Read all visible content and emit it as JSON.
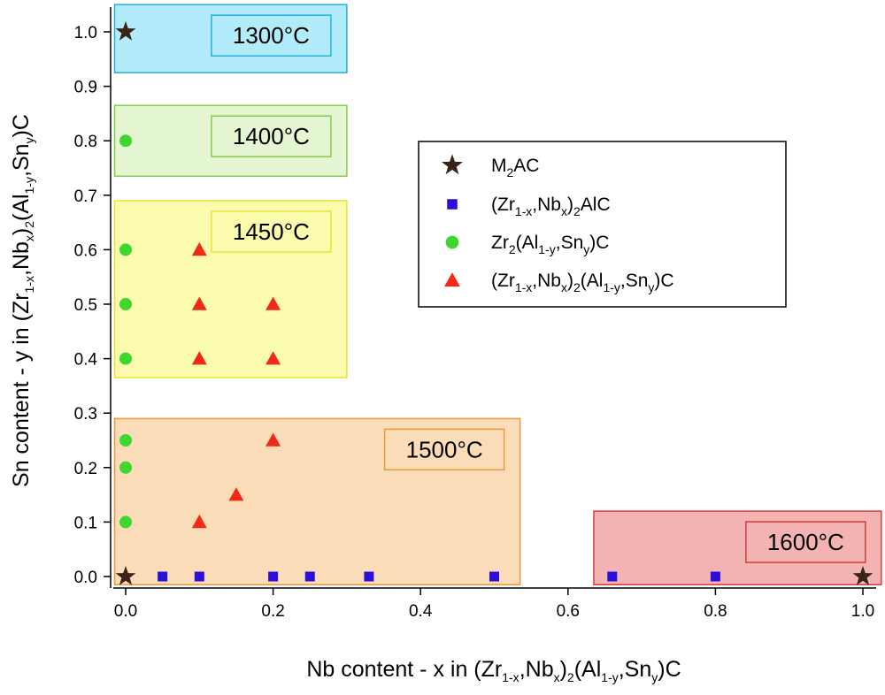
{
  "chart_data": {
    "type": "scatter",
    "xlabel": "Nb content - x in (Zr1-x,Nbx)2(Al1-y,Sny)C",
    "ylabel": "Sn content - y in (Zr1-x,Nbx)2(Al1-y,Sny)C",
    "xlim": [
      -0.02,
      1.02
    ],
    "ylim": [
      -0.02,
      1.04
    ],
    "xticks": [
      "0.0",
      "0.2",
      "0.4",
      "0.6",
      "0.8",
      "1.0"
    ],
    "yticks": [
      "0.0",
      "0.1",
      "0.2",
      "0.3",
      "0.4",
      "0.5",
      "0.6",
      "0.7",
      "0.8",
      "0.9",
      "1.0"
    ],
    "grid": false,
    "legend_position": "right",
    "regions": [
      {
        "label": "1300°C",
        "x": [
          -0.015,
          0.3
        ],
        "y": [
          0.925,
          1.05
        ],
        "color": "#b2ebf9",
        "border": "#2aaed9"
      },
      {
        "label": "1400°C",
        "x": [
          -0.015,
          0.3
        ],
        "y": [
          0.735,
          0.865
        ],
        "color": "#e5f7d2",
        "border": "#86cb4e"
      },
      {
        "label": "1450°C",
        "x": [
          -0.015,
          0.3
        ],
        "y": [
          0.365,
          0.69
        ],
        "color": "#fafbac",
        "border": "#e7e33a"
      },
      {
        "label": "1500°C",
        "x": [
          -0.015,
          0.535
        ],
        "y": [
          -0.015,
          0.29
        ],
        "color": "#fbdcb8",
        "border": "#e99a3e"
      },
      {
        "label": "1600°C",
        "x": [
          0.635,
          1.025
        ],
        "y": [
          -0.015,
          0.12
        ],
        "color": "#f3b3b3",
        "border": "#d33d3d"
      }
    ],
    "series": [
      {
        "name": "M2AC",
        "marker": "star",
        "color": "#3a2418",
        "points": [
          [
            0,
            1.0
          ],
          [
            0,
            0.0
          ],
          [
            1.0,
            0.0
          ]
        ]
      },
      {
        "name": "(Zr1-x,Nbx)2AlC",
        "marker": "square",
        "color": "#2a10d8",
        "points": [
          [
            0.05,
            0
          ],
          [
            0.1,
            0
          ],
          [
            0.2,
            0
          ],
          [
            0.25,
            0
          ],
          [
            0.33,
            0
          ],
          [
            0.5,
            0
          ],
          [
            0.66,
            0
          ],
          [
            0.8,
            0
          ]
        ]
      },
      {
        "name": "Zr2(Al1-y,Sny)C",
        "marker": "circle",
        "color": "#3ed62f",
        "points": [
          [
            0,
            0.8
          ],
          [
            0,
            0.6
          ],
          [
            0,
            0.5
          ],
          [
            0,
            0.4
          ],
          [
            0,
            0.25
          ],
          [
            0,
            0.2
          ],
          [
            0,
            0.1
          ]
        ]
      },
      {
        "name": "(Zr1-x,Nbx)2(Al1-y,Sny)C",
        "marker": "triangle",
        "color": "#f02a16",
        "points": [
          [
            0.1,
            0.6
          ],
          [
            0.1,
            0.5
          ],
          [
            0.2,
            0.5
          ],
          [
            0.1,
            0.4
          ],
          [
            0.2,
            0.4
          ],
          [
            0.2,
            0.25
          ],
          [
            0.15,
            0.15
          ],
          [
            0.1,
            0.1
          ]
        ]
      }
    ]
  }
}
